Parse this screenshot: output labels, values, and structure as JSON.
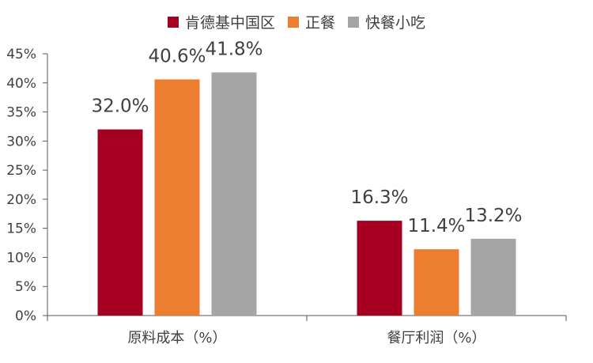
{
  "chart_data": {
    "type": "bar",
    "categories": [
      "原料成本（%）",
      "餐厅利润（%）"
    ],
    "series": [
      {
        "name": "肯德基中国区",
        "values": [
          32.0,
          16.3
        ],
        "labels": [
          "32.0%",
          "16.3%"
        ],
        "color": "#A50021"
      },
      {
        "name": "正餐",
        "values": [
          40.6,
          11.4
        ],
        "labels": [
          "40.6%",
          "11.4%"
        ],
        "color": "#ED7D31"
      },
      {
        "name": "快餐小吃",
        "values": [
          41.8,
          13.2
        ],
        "labels": [
          "41.8%",
          "13.2%"
        ],
        "color": "#A5A5A5"
      }
    ],
    "y_ticks": [
      "0%",
      "5%",
      "10%",
      "15%",
      "20%",
      "25%",
      "30%",
      "35%",
      "40%",
      "45%"
    ],
    "ylim": [
      0,
      45
    ],
    "grid": false,
    "legend_position": "top-center"
  }
}
